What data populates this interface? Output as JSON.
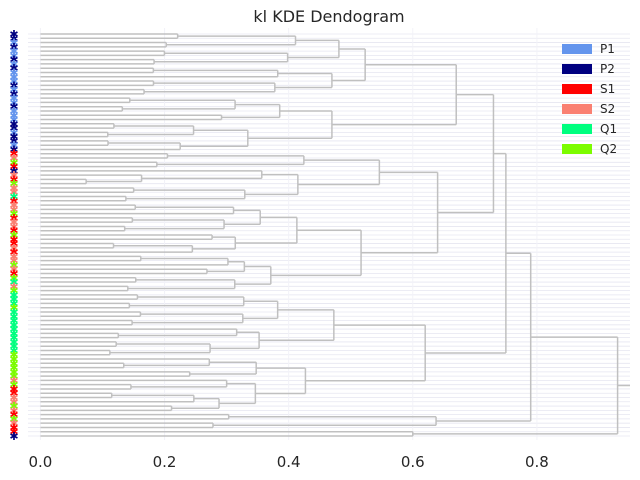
{
  "chart_data": {
    "type": "dendrogram",
    "title": "kl KDE Dendogram",
    "orientation": "horizontal",
    "xlim": [
      -0.02,
      0.95
    ],
    "xticks": [
      0.0,
      0.2,
      0.4,
      0.6,
      0.8
    ],
    "xtick_labels": [
      "0.0",
      "0.2",
      "0.4",
      "0.6",
      "0.8"
    ],
    "grid": true,
    "legend_position": "top-right",
    "legend": [
      {
        "label": "P1",
        "color": "#6495ED"
      },
      {
        "label": "P2",
        "color": "#000080"
      },
      {
        "label": "S1",
        "color": "#FF0000"
      },
      {
        "label": "S2",
        "color": "#FA8072"
      },
      {
        "label": "Q1",
        "color": "#00FF7F"
      },
      {
        "label": "Q2",
        "color": "#7CFC00"
      }
    ],
    "branch_color": "#C0C0C0",
    "leaf_count": 95,
    "leaf_classes": [
      "P2",
      "P2",
      "P1",
      "P2",
      "P1",
      "P1",
      "P2",
      "P1",
      "P2",
      "P1",
      "P1",
      "P1",
      "P2",
      "P1",
      "P2",
      "P1",
      "P1",
      "P2",
      "P1",
      "P1",
      "P1",
      "P2",
      "P2",
      "P1",
      "P2",
      "P2",
      "P1",
      "P2",
      "S1",
      "S2",
      "Q2",
      "S1",
      "P2",
      "S2",
      "S1",
      "Q2",
      "S2",
      "S2",
      "Q1",
      "S1",
      "S2",
      "S2",
      "Q2",
      "S1",
      "S2",
      "S2",
      "S1",
      "Q2",
      "S1",
      "S1",
      "S2",
      "S1",
      "S2",
      "S2",
      "Q2",
      "S2",
      "S1",
      "Q2",
      "Q1",
      "S2",
      "Q2",
      "Q1",
      "Q1",
      "Q1",
      "Q2",
      "Q1",
      "Q1",
      "Q1",
      "Q1",
      "Q1",
      "Q1",
      "Q1",
      "Q1",
      "Q1",
      "Q1",
      "Q2",
      "Q2",
      "Q2",
      "Q2",
      "Q2",
      "Q2",
      "S2",
      "Q2",
      "S1",
      "S1",
      "S2",
      "S2",
      "Q2",
      "S2",
      "S1",
      "Q2",
      "S2",
      "S1",
      "S1",
      "P2"
    ],
    "top_merges": [
      {
        "height": 0.93,
        "note": "root"
      },
      {
        "height": 0.79
      },
      {
        "height": 0.75
      },
      {
        "height": 0.73
      },
      {
        "height": 0.67
      },
      {
        "height": 0.64
      }
    ]
  }
}
